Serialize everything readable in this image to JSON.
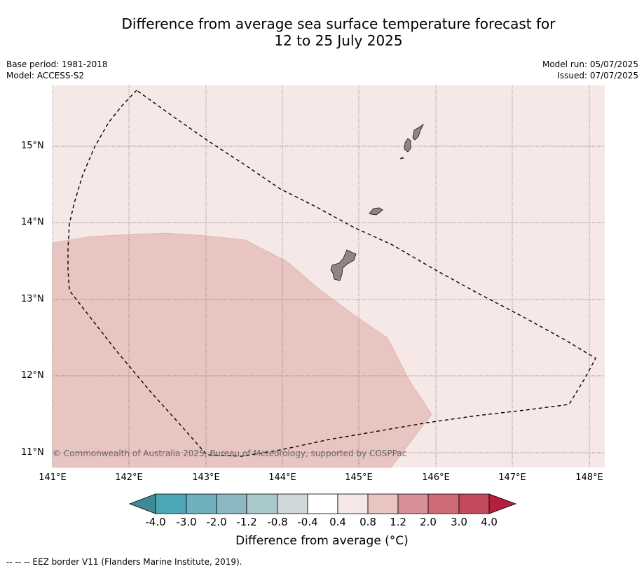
{
  "title_line1": "Difference from average sea surface temperature forecast for",
  "title_line2": "12 to 25 July 2025",
  "meta_left": [
    "Base period: 1981-2018",
    "Model: ACCESS-S2"
  ],
  "meta_right": [
    "Model run: 05/07/2025",
    "Issued: 07/07/2025"
  ],
  "lat_labels": [
    "15°N",
    "14°N",
    "13°N",
    "12°N",
    "11°N"
  ],
  "lon_labels": [
    "141°E",
    "142°E",
    "143°E",
    "144°E",
    "145°E",
    "146°E",
    "147°E",
    "148°E"
  ],
  "colorbar": {
    "ticks": [
      "-4.0",
      "-3.0",
      "-2.0",
      "-1.2",
      "-0.8",
      "-0.4",
      "0.4",
      "0.8",
      "1.2",
      "2.0",
      "3.0",
      "4.0"
    ],
    "colors": [
      "#4da6b5",
      "#6eb0bd",
      "#8bb8c2",
      "#a9c8cc",
      "#d0d7da",
      "#ffffff",
      "#f5e8e6",
      "#e8c5c0",
      "#d98f98",
      "#cf6a78",
      "#c24a5c"
    ],
    "under_color": "#3d8a96",
    "over_color": "#b3203e",
    "label": "Difference from average (°C)"
  },
  "field_colors": {
    "band_0_4_to_0_8": "#f5e8e6",
    "band_0_8_to_1_2": "#e8c5c0"
  },
  "footnote": "--  --  -- EEZ border V11 (Flanders Marine Institute, 2019).",
  "copyright": "© Commonwealth of Australia 2025, Bureau of Meteorology, supported by COSPPac"
}
